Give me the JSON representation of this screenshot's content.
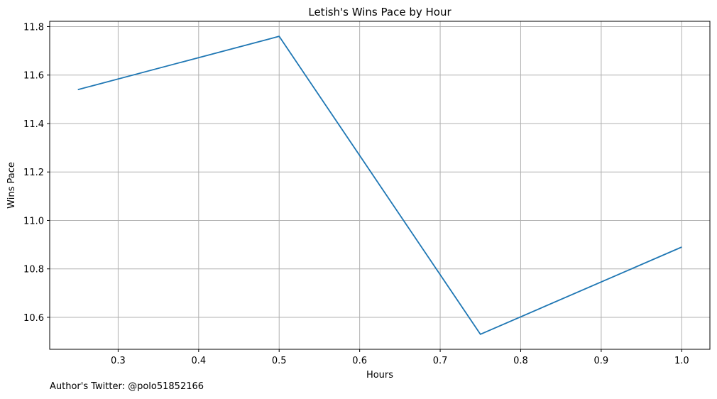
{
  "chart_data": {
    "type": "line",
    "title": "Letish's Wins Pace by Hour",
    "xlabel": "Hours",
    "ylabel": "Wins Pace",
    "x": [
      0.25,
      0.5,
      0.75,
      1.0
    ],
    "series": [
      {
        "values": [
          11.54,
          11.76,
          10.53,
          10.89
        ],
        "color": "#1f77b4"
      }
    ],
    "xlim": [
      0.215,
      1.035
    ],
    "ylim": [
      10.468,
      11.822
    ],
    "xticks": [
      0.3,
      0.4,
      0.5,
      0.6,
      0.7,
      0.8,
      0.9,
      1.0
    ],
    "xtick_labels": [
      "0.3",
      "0.4",
      "0.5",
      "0.6",
      "0.7",
      "0.8",
      "0.9",
      "1.0"
    ],
    "yticks": [
      10.6,
      10.8,
      11.0,
      11.2,
      11.4,
      11.6,
      11.8
    ],
    "ytick_labels": [
      "10.6",
      "10.8",
      "11.0",
      "11.2",
      "11.4",
      "11.6",
      "11.8"
    ],
    "grid": true,
    "legend": false
  },
  "footer": {
    "text": "Author's Twitter: @polo51852166"
  }
}
